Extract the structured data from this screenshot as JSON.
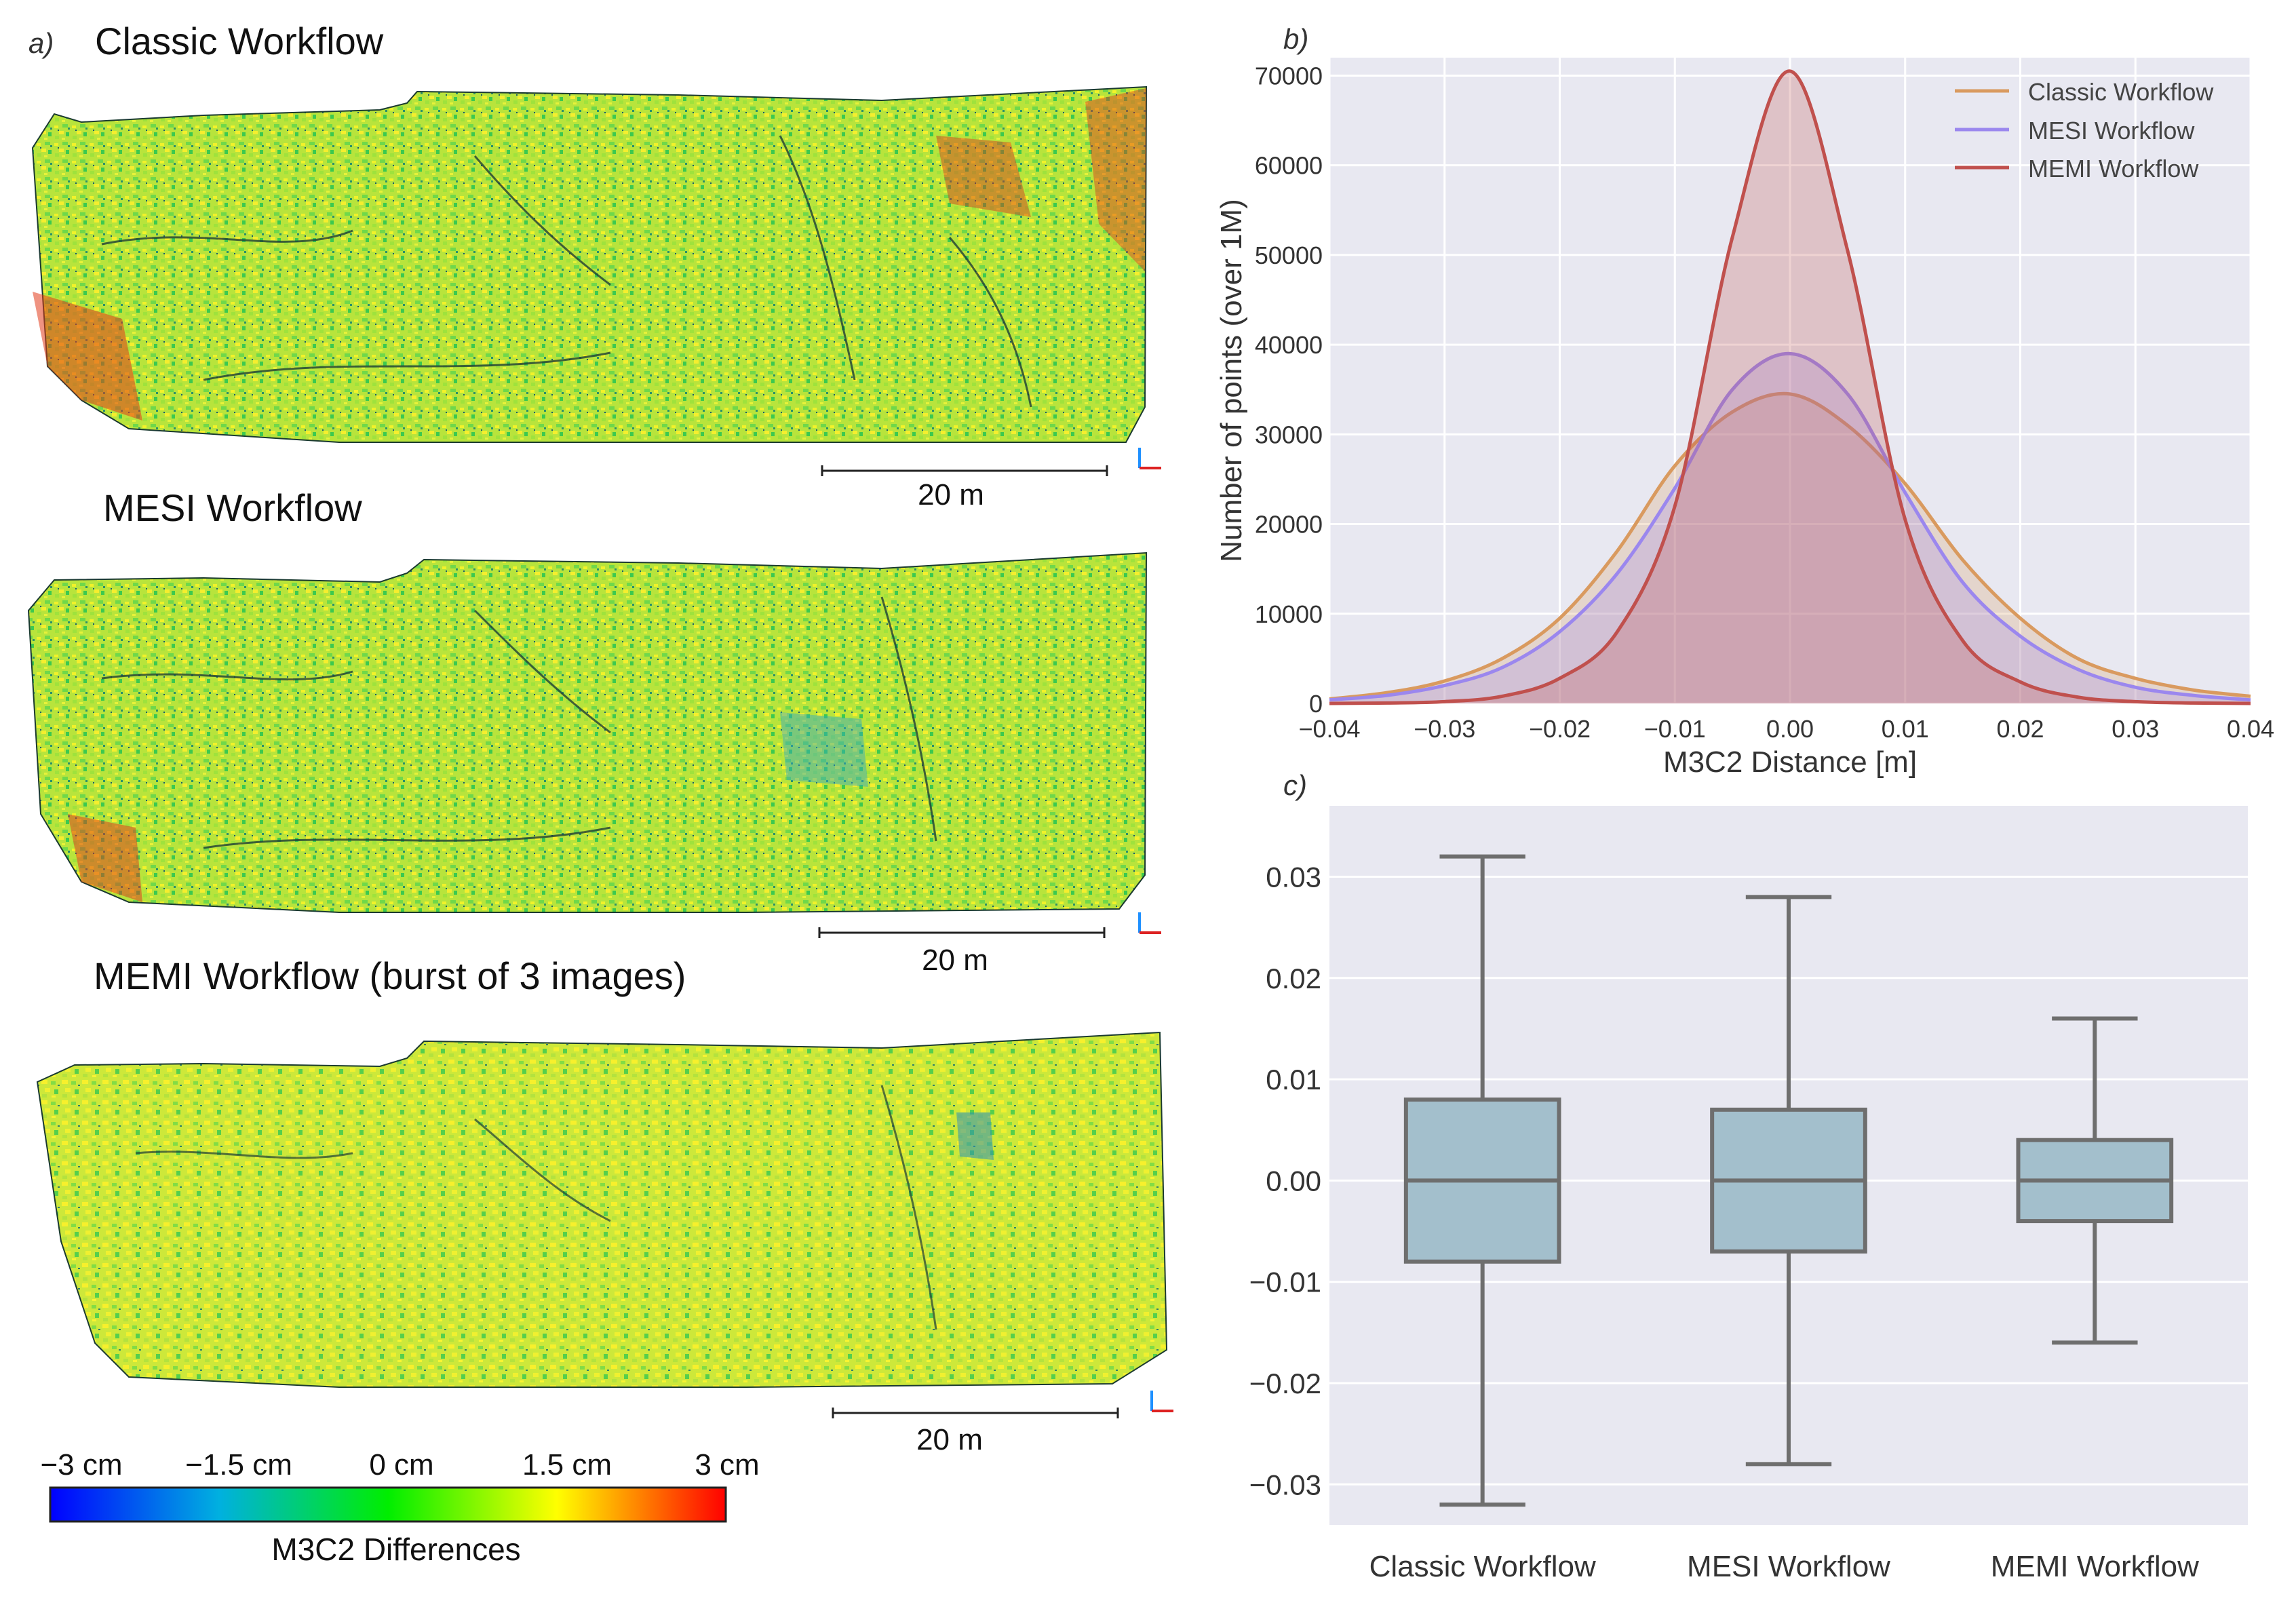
{
  "colors": {
    "classic": "#d99a5f",
    "mesi": "#9b87ee",
    "memi": "#c0504d",
    "plot_bg": "#e8e8f1",
    "grid": "#ffffff",
    "box_fill": "#a3bfcc",
    "box_line": "#6e6e6e",
    "scale_bar": "#222222"
  },
  "panel_a": {
    "label": "a)",
    "maps": [
      {
        "title": "Classic Workflow",
        "scale_label": "20 m",
        "icon": "axis-gizmo-icon"
      },
      {
        "title": "MESI Workflow",
        "scale_label": "20 m",
        "icon": "axis-gizmo-icon"
      },
      {
        "title": "MEMI Workflow (burst of 3 images)",
        "scale_label": "20 m",
        "icon": "axis-gizmo-icon"
      }
    ],
    "colorbar": {
      "ticks": [
        "−3 cm",
        "−1.5 cm",
        "0 cm",
        "1.5 cm",
        "3 cm"
      ],
      "label": "M3C2 Differences",
      "stops": [
        "#0000ff",
        "#00b0e0",
        "#00ee00",
        "#ffff00",
        "#ff0000"
      ]
    }
  },
  "chart_data": [
    {
      "panel_label": "b)",
      "type": "area",
      "xlabel": "M3C2 Distance [m]",
      "ylabel": "Number of points (over 1M)",
      "xlim": [
        -0.04,
        0.04
      ],
      "ylim": [
        0,
        72000
      ],
      "x_ticks": [
        "−0.04",
        "−0.03",
        "−0.02",
        "−0.01",
        "0.00",
        "0.01",
        "0.02",
        "0.03",
        "0.04"
      ],
      "x_tick_values": [
        -0.04,
        -0.03,
        -0.02,
        -0.01,
        0.0,
        0.01,
        0.02,
        0.03,
        0.04
      ],
      "y_ticks": [
        "0",
        "10000",
        "20000",
        "30000",
        "40000",
        "50000",
        "60000",
        "70000"
      ],
      "y_tick_values": [
        0,
        10000,
        20000,
        30000,
        40000,
        50000,
        60000,
        70000
      ],
      "legend_position": "top-right",
      "x": [
        -0.04,
        -0.035,
        -0.03,
        -0.025,
        -0.02,
        -0.015,
        -0.01,
        -0.005,
        0.0,
        0.005,
        0.01,
        0.015,
        0.02,
        0.025,
        0.03,
        0.035,
        0.04
      ],
      "series": [
        {
          "name": "Classic Workflow",
          "values": [
            500,
            1200,
            2500,
            5000,
            9500,
            17000,
            26500,
            32500,
            34500,
            31000,
            24500,
            16000,
            9500,
            5000,
            2800,
            1500,
            800
          ]
        },
        {
          "name": "MESI Workflow",
          "values": [
            400,
            900,
            2000,
            4000,
            8000,
            14500,
            24000,
            35000,
            39000,
            34500,
            23500,
            13500,
            7500,
            3800,
            1800,
            900,
            400
          ]
        },
        {
          "name": "MEMI Workflow",
          "values": [
            0,
            50,
            200,
            800,
            2800,
            8000,
            22000,
            52000,
            70500,
            50500,
            20500,
            7000,
            2400,
            700,
            200,
            50,
            0
          ]
        }
      ]
    },
    {
      "panel_label": "c)",
      "type": "box",
      "categories": [
        "Classic Workflow",
        "MESI Workflow",
        "MEMI Workflow"
      ],
      "ylim": [
        -0.034,
        0.037
      ],
      "y_ticks": [
        "0.03",
        "0.02",
        "0.01",
        "0.00",
        "−0.01",
        "−0.02",
        "−0.03"
      ],
      "y_tick_values": [
        0.03,
        0.02,
        0.01,
        0.0,
        -0.01,
        -0.02,
        -0.03
      ],
      "boxes": [
        {
          "name": "Classic Workflow",
          "whisker_low": -0.032,
          "q1": -0.008,
          "median": 0.0,
          "q3": 0.008,
          "whisker_high": 0.032
        },
        {
          "name": "MESI Workflow",
          "whisker_low": -0.028,
          "q1": -0.007,
          "median": 0.0,
          "q3": 0.007,
          "whisker_high": 0.028
        },
        {
          "name": "MEMI Workflow",
          "whisker_low": -0.016,
          "q1": -0.004,
          "median": 0.0,
          "q3": 0.004,
          "whisker_high": 0.016
        }
      ]
    }
  ]
}
